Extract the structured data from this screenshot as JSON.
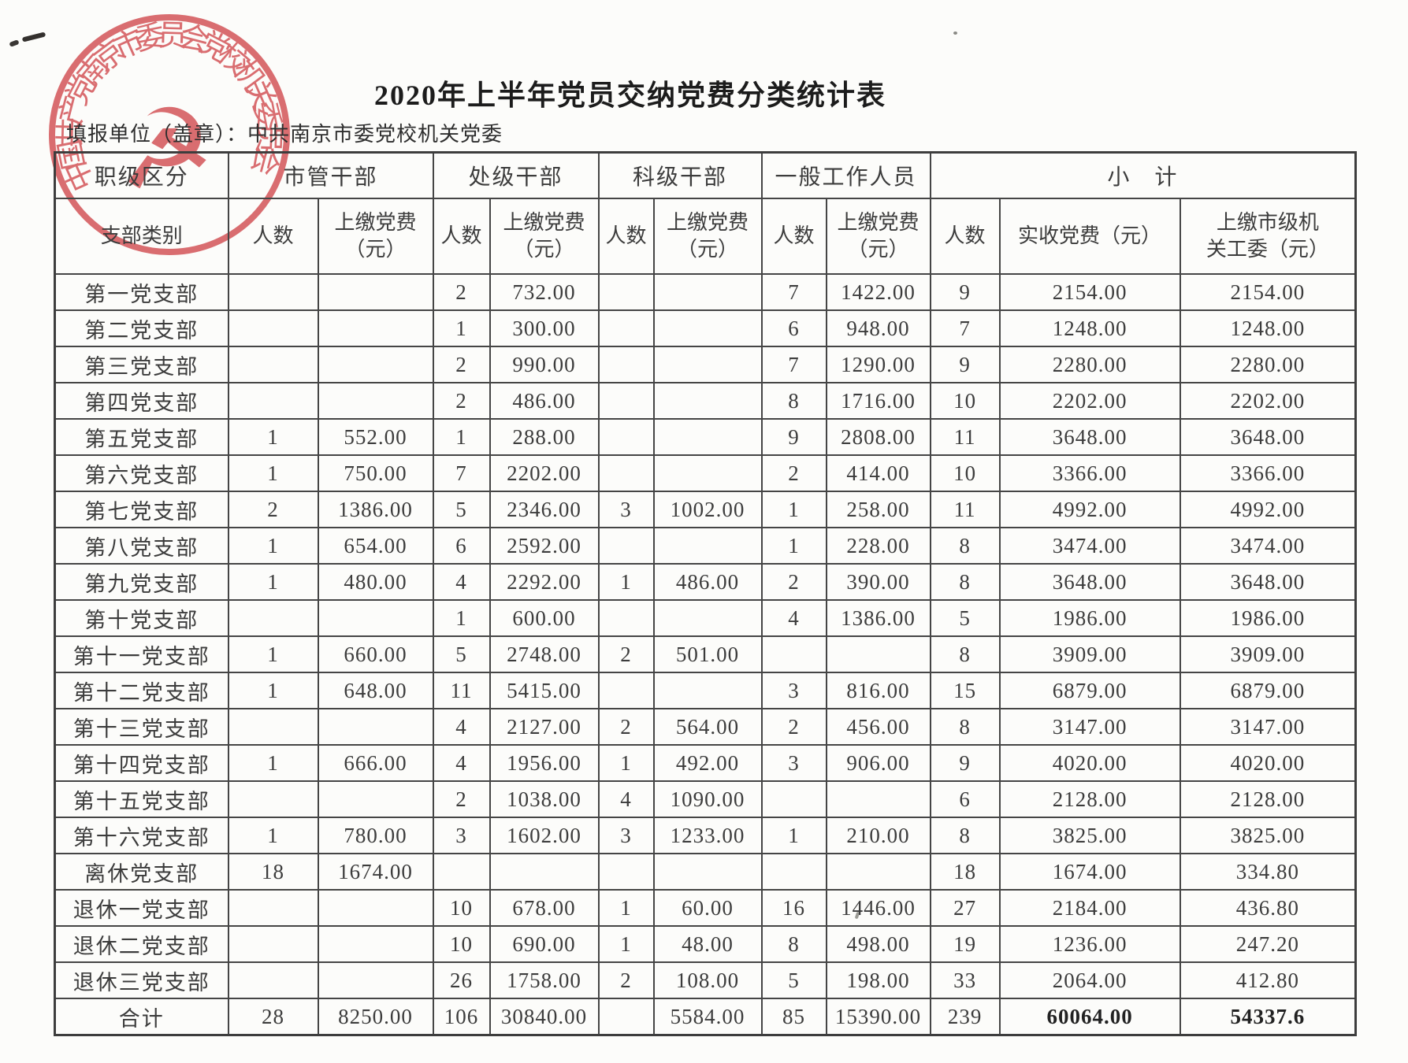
{
  "page": {
    "title": "2020年上半年党员交纳党费分类统计表",
    "report_unit_label": "填报单位（盖章）：",
    "report_unit_value": "中共南京市委党校机关党委",
    "seal": {
      "text": "中国共产党南京市委员会党校机关委员会",
      "emblem_glyph": "☭",
      "color": "#d4494e"
    }
  },
  "table": {
    "header": {
      "corner_top": "职级区分",
      "corner_bottom": "支部类别",
      "groups": [
        {
          "label": "市管干部",
          "cols": [
            "人数",
            "上缴党费\n（元）"
          ]
        },
        {
          "label": "处级干部",
          "cols": [
            "人数",
            "上缴党费\n（元）"
          ]
        },
        {
          "label": "科级干部",
          "cols": [
            "人数",
            "上缴党费\n（元）"
          ]
        },
        {
          "label": "一般工作人员",
          "cols": [
            "人数",
            "上缴党费\n（元）"
          ]
        },
        {
          "label": "小　计",
          "cols": [
            "人数",
            "实收党费（元）",
            "上缴市级机\n关工委（元）"
          ]
        }
      ]
    },
    "rows": [
      [
        "第一党支部",
        "",
        "",
        "2",
        "732.00",
        "",
        "",
        "7",
        "1422.00",
        "9",
        "2154.00",
        "2154.00"
      ],
      [
        "第二党支部",
        "",
        "",
        "1",
        "300.00",
        "",
        "",
        "6",
        "948.00",
        "7",
        "1248.00",
        "1248.00"
      ],
      [
        "第三党支部",
        "",
        "",
        "2",
        "990.00",
        "",
        "",
        "7",
        "1290.00",
        "9",
        "2280.00",
        "2280.00"
      ],
      [
        "第四党支部",
        "",
        "",
        "2",
        "486.00",
        "",
        "",
        "8",
        "1716.00",
        "10",
        "2202.00",
        "2202.00"
      ],
      [
        "第五党支部",
        "1",
        "552.00",
        "1",
        "288.00",
        "",
        "",
        "9",
        "2808.00",
        "11",
        "3648.00",
        "3648.00"
      ],
      [
        "第六党支部",
        "1",
        "750.00",
        "7",
        "2202.00",
        "",
        "",
        "2",
        "414.00",
        "10",
        "3366.00",
        "3366.00"
      ],
      [
        "第七党支部",
        "2",
        "1386.00",
        "5",
        "2346.00",
        "3",
        "1002.00",
        "1",
        "258.00",
        "11",
        "4992.00",
        "4992.00"
      ],
      [
        "第八党支部",
        "1",
        "654.00",
        "6",
        "2592.00",
        "",
        "",
        "1",
        "228.00",
        "8",
        "3474.00",
        "3474.00"
      ],
      [
        "第九党支部",
        "1",
        "480.00",
        "4",
        "2292.00",
        "1",
        "486.00",
        "2",
        "390.00",
        "8",
        "3648.00",
        "3648.00"
      ],
      [
        "第十党支部",
        "",
        "",
        "1",
        "600.00",
        "",
        "",
        "4",
        "1386.00",
        "5",
        "1986.00",
        "1986.00"
      ],
      [
        "第十一党支部",
        "1",
        "660.00",
        "5",
        "2748.00",
        "2",
        "501.00",
        "",
        "",
        "8",
        "3909.00",
        "3909.00"
      ],
      [
        "第十二党支部",
        "1",
        "648.00",
        "11",
        "5415.00",
        "",
        "",
        "3",
        "816.00",
        "15",
        "6879.00",
        "6879.00"
      ],
      [
        "第十三党支部",
        "",
        "",
        "4",
        "2127.00",
        "2",
        "564.00",
        "2",
        "456.00",
        "8",
        "3147.00",
        "3147.00"
      ],
      [
        "第十四党支部",
        "1",
        "666.00",
        "4",
        "1956.00",
        "1",
        "492.00",
        "3",
        "906.00",
        "9",
        "4020.00",
        "4020.00"
      ],
      [
        "第十五党支部",
        "",
        "",
        "2",
        "1038.00",
        "4",
        "1090.00",
        "",
        "",
        "6",
        "2128.00",
        "2128.00"
      ],
      [
        "第十六党支部",
        "1",
        "780.00",
        "3",
        "1602.00",
        "3",
        "1233.00",
        "1",
        "210.00",
        "8",
        "3825.00",
        "3825.00"
      ],
      [
        "离休党支部",
        "18",
        "1674.00",
        "",
        "",
        "",
        "",
        "",
        "",
        "18",
        "1674.00",
        "334.80"
      ],
      [
        "退休一党支部",
        "",
        "",
        "10",
        "678.00",
        "1",
        "60.00",
        "16",
        "1446.00",
        "27",
        "2184.00",
        "436.80"
      ],
      [
        "退休二党支部",
        "",
        "",
        "10",
        "690.00",
        "1",
        "48.00",
        "8",
        "498.00",
        "19",
        "1236.00",
        "247.20"
      ],
      [
        "退休三党支部",
        "",
        "",
        "26",
        "1758.00",
        "2",
        "108.00",
        "5",
        "198.00",
        "33",
        "2064.00",
        "412.80"
      ]
    ],
    "total_row": [
      "合计",
      "28",
      "8250.00",
      "106",
      "30840.00",
      "",
      "5584.00",
      "85",
      "15390.00",
      "239",
      "60064.00",
      "54337.6"
    ]
  }
}
